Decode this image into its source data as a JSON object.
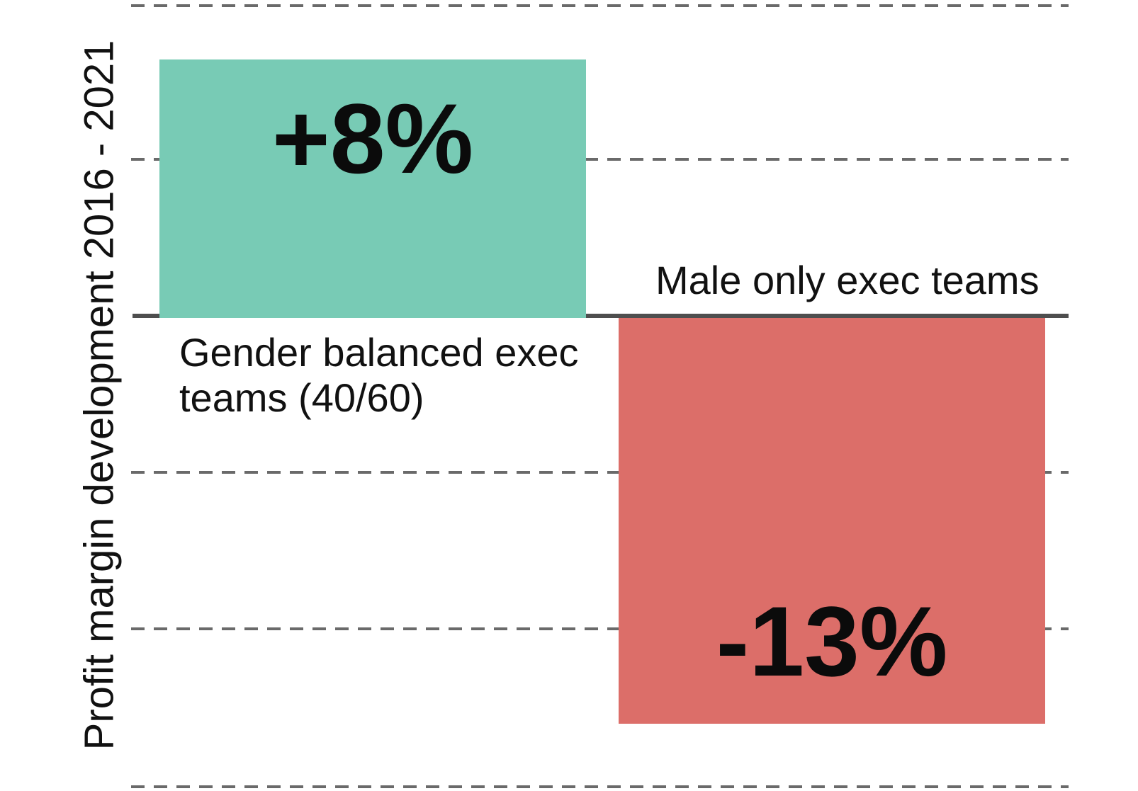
{
  "chart_data": {
    "type": "bar",
    "categories": [
      "Gender balanced exec teams (40/60)",
      "Male only exec teams"
    ],
    "values": [
      8,
      -13
    ],
    "value_labels": [
      "+8%",
      "-13%"
    ],
    "series": [
      {
        "name": "Profit margin development",
        "values": [
          8,
          -13
        ]
      }
    ],
    "title": "",
    "xlabel": "",
    "ylabel": "Profit margin development 2016 - 2021",
    "ylim": [
      -15,
      10
    ],
    "gridlines_pct": [
      10,
      5,
      0,
      -5,
      -10,
      -15
    ],
    "gridline_step_pct": 5,
    "grid_style": "horizontal dashed, solid dark line at zero",
    "legend": "none",
    "value_label_position": "inside bars",
    "colors": {
      "positive_bar": "#78CBB5",
      "negative_bar": "#DC6E69",
      "gridline": "#6a6a6a",
      "zero_line": "#4e4e4e",
      "text": "#111111"
    }
  }
}
